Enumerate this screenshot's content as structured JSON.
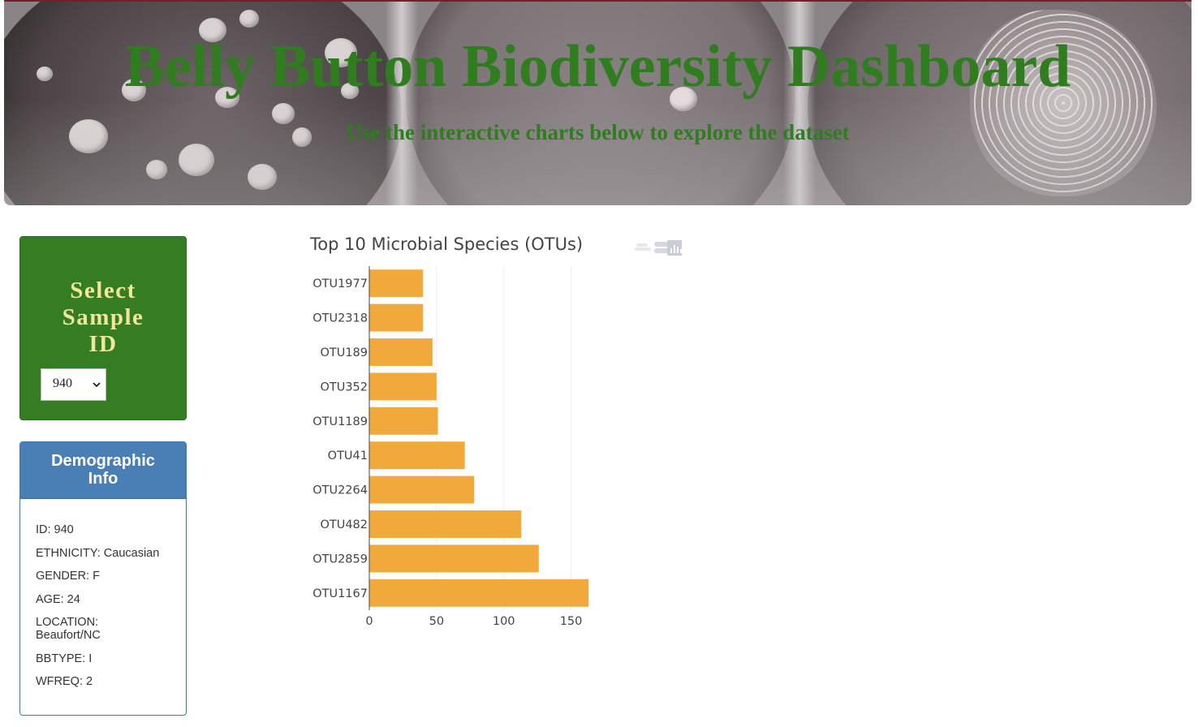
{
  "header": {
    "title": "Belly Button Biodiversity Dashboard",
    "subtitle": "Use the interactive charts below to explore the dataset"
  },
  "selector": {
    "heading": "Select Sample ID",
    "selected_value": "940"
  },
  "demographics": {
    "heading": "Demographic Info",
    "lines": [
      "ID: 940",
      "ETHNICITY: Caucasian",
      "GENDER: F",
      "AGE: 24",
      "LOCATION: Beaufort/NC",
      "BBTYPE: I",
      "WFREQ: 2"
    ]
  },
  "icons": {
    "dropdown": "chevron-down-icon",
    "modebar_zoom": "zoom-icon",
    "modebar_hover": "hover-compare-icon",
    "modebar_logo": "plotly-logo-icon"
  },
  "colors": {
    "title_green": "#2f7d1f",
    "panel_green": "#357d22",
    "panel_heading_text": "#f3e59a",
    "demo_blue": "#4a7fb6",
    "bar_orange": "#f2a93b"
  },
  "chart_data": {
    "type": "bar",
    "orientation": "horizontal",
    "title": "Top 10 Microbial Species (OTUs)",
    "categories": [
      "OTU1977",
      "OTU2318",
      "OTU189",
      "OTU352",
      "OTU1189",
      "OTU41",
      "OTU2264",
      "OTU482",
      "OTU2859",
      "OTU1167"
    ],
    "values": [
      40,
      40,
      47,
      50,
      51,
      71,
      78,
      113,
      126,
      163
    ],
    "xticks": [
      0,
      50,
      100,
      150
    ],
    "xlim": [
      0,
      172
    ],
    "grid": true
  }
}
